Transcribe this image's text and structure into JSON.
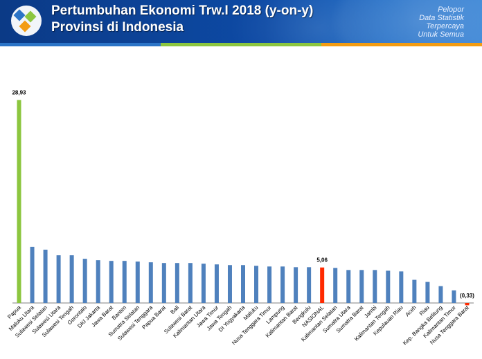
{
  "header": {
    "title_line1": "Pertumbuhan Ekonomi Trw.I 2018 (y-on-y)",
    "title_line2": "Provinsi di Indonesia",
    "tagline": [
      "Pelopor",
      "Data Statistik",
      "Terpercaya",
      "Untuk Semua"
    ]
  },
  "colors": {
    "default_bar": "#4f81bd",
    "highlight_green": "#8cc63f",
    "highlight_red": "#ff2a00"
  },
  "chart_data": {
    "type": "bar",
    "title": "Pertumbuhan Ekonomi Trw.I 2018 (y-on-y) Provinsi di Indonesia",
    "xlabel": "",
    "ylabel": "",
    "ylim": [
      -0.5,
      30
    ],
    "grid": false,
    "legend": "none",
    "categories": [
      "Papua",
      "Maluku Utara",
      "Sulawesi Selatan",
      "Sulawesi Utara",
      "Sulawesi Tengah",
      "Gorontalo",
      "DKI Jakarta",
      "Jawa Barat",
      "Banten",
      "Sumatra Selatan",
      "Sulawesi Tenggara",
      "Papua Barat",
      "Bali",
      "Sulawesi Barat",
      "Kalimantan Utara",
      "Jawa Timur",
      "Jawa Tengah",
      "DI Yogyakarta",
      "Maluku",
      "Nusa Tenggara Timur",
      "Lampung",
      "Kalimantan Barat",
      "Bengkulu",
      "NASIONAL",
      "Kalimantan Selatan",
      "Sumatra Utara",
      "Sumatra Barat",
      "Jambi",
      "Kalimantan Tengah",
      "Kepulauan Riau",
      "Aceh",
      "Riau",
      "Kep. Bangka Belitung",
      "Kalimantan Timur",
      "Nusa Tenggara Barat"
    ],
    "values": [
      28.93,
      8.0,
      7.6,
      6.8,
      6.8,
      6.3,
      6.1,
      6.0,
      6.0,
      5.9,
      5.8,
      5.7,
      5.7,
      5.7,
      5.6,
      5.5,
      5.4,
      5.4,
      5.3,
      5.2,
      5.2,
      5.1,
      5.1,
      5.06,
      5.0,
      4.7,
      4.7,
      4.7,
      4.6,
      4.5,
      3.3,
      3.0,
      2.4,
      1.8,
      -0.33
    ],
    "colors": [
      "#8cc63f",
      "#4f81bd",
      "#4f81bd",
      "#4f81bd",
      "#4f81bd",
      "#4f81bd",
      "#4f81bd",
      "#4f81bd",
      "#4f81bd",
      "#4f81bd",
      "#4f81bd",
      "#4f81bd",
      "#4f81bd",
      "#4f81bd",
      "#4f81bd",
      "#4f81bd",
      "#4f81bd",
      "#4f81bd",
      "#4f81bd",
      "#4f81bd",
      "#4f81bd",
      "#4f81bd",
      "#4f81bd",
      "#ff2a00",
      "#4f81bd",
      "#4f81bd",
      "#4f81bd",
      "#4f81bd",
      "#4f81bd",
      "#4f81bd",
      "#4f81bd",
      "#4f81bd",
      "#4f81bd",
      "#4f81bd",
      "#ff2a00"
    ],
    "data_labels": [
      {
        "index": 0,
        "text": "28,93"
      },
      {
        "index": 23,
        "text": "5,06"
      },
      {
        "index": 34,
        "text": "(0,33)"
      }
    ]
  }
}
